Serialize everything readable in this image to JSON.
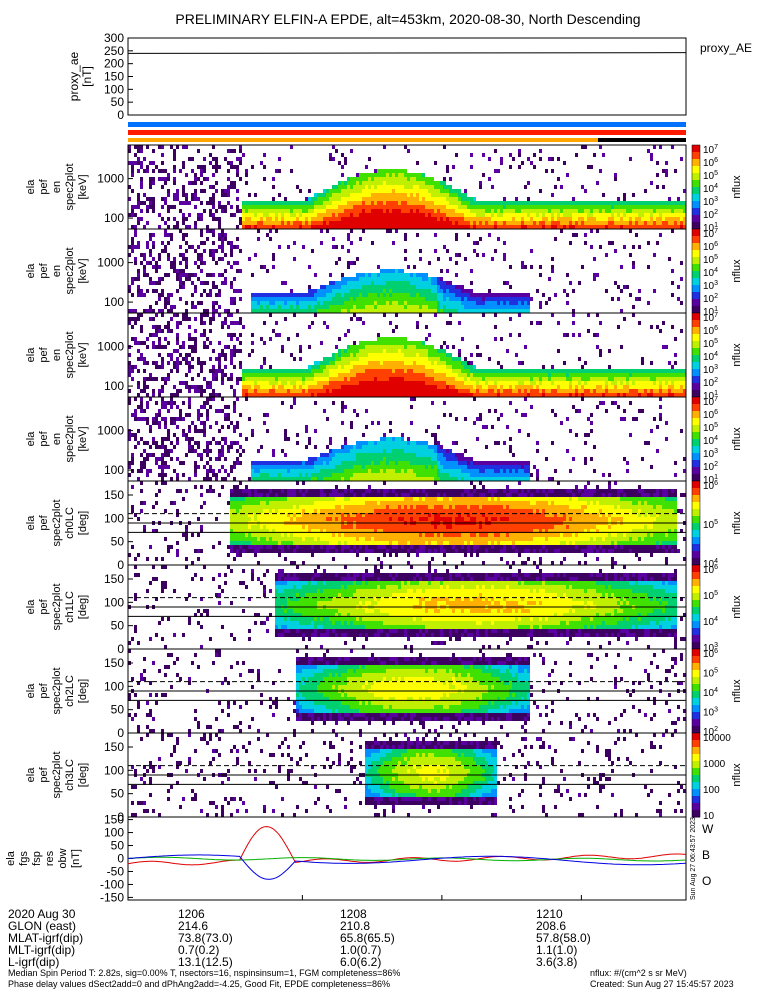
{
  "title": "PRELIMINARY ELFIN-A EPDE, alt=453km, 2020-08-30, North Descending",
  "side_label": "Sun Aug 27 06:43:57 2023",
  "colors": {
    "red_bar": "#ff1a00",
    "blue_bar": "#0070ff",
    "orange_bar": "#ffa500",
    "black_bar": "#000000"
  },
  "chart_data": [
    {
      "type": "line",
      "id": "proxy_ae",
      "ylabel": "proxy_ae\n[nT]",
      "series_label": "proxy_AE",
      "ylim": [
        0,
        300
      ],
      "yticks": [
        "300",
        "250",
        "200",
        "150",
        "100",
        "50",
        "0"
      ],
      "x": [
        1203.5,
        1211.5
      ],
      "values": [
        240,
        243
      ]
    },
    {
      "type": "heatmap",
      "id": "spec-0",
      "ylabel": "ela\npef\nen\nspec2plot\n[keV]",
      "yticks": [
        "1000",
        "100"
      ],
      "cbar_ticks": [
        "10^7",
        "10^6",
        "10^5",
        "10^4",
        "10^3",
        "10^2",
        "10^1"
      ],
      "cbar_label": "nflux",
      "log_y": true
    },
    {
      "type": "heatmap",
      "id": "spec-1",
      "ylabel": "ela\npef\nen\nspec2plot\n[keV]",
      "yticks": [
        "1000",
        "100"
      ],
      "cbar_ticks": [
        "10^7",
        "10^6",
        "10^5",
        "10^4",
        "10^3",
        "10^2",
        "10^1"
      ],
      "cbar_label": "nflux",
      "log_y": true
    },
    {
      "type": "heatmap",
      "id": "spec-2",
      "ylabel": "ela\npef\nen\nspec2plot\n[keV]",
      "yticks": [
        "1000",
        "100"
      ],
      "cbar_ticks": [
        "10^7",
        "10^6",
        "10^5",
        "10^4",
        "10^3",
        "10^2",
        "10^1"
      ],
      "cbar_label": "nflux",
      "log_y": true
    },
    {
      "type": "heatmap",
      "id": "spec-3",
      "ylabel": "ela\npef\nen\nspec2plot\n[keV]",
      "yticks": [
        "1000",
        "100"
      ],
      "cbar_ticks": [
        "10^7",
        "10^6",
        "10^5",
        "10^4",
        "10^3",
        "10^2",
        "10^1"
      ],
      "cbar_label": "nflux",
      "log_y": true
    },
    {
      "type": "heatmap",
      "id": "pa-0",
      "ylabel": "ela\npef\nspec2plot\nch0LC\n[deg]",
      "yticks": [
        "150",
        "100",
        "50",
        "0"
      ],
      "cbar_ticks": [
        "10^6",
        "10^5",
        "10^4"
      ],
      "cbar_label": "nflux"
    },
    {
      "type": "heatmap",
      "id": "pa-1",
      "ylabel": "ela\npef\nspec2plot\nch1LC\n[deg]",
      "yticks": [
        "150",
        "100",
        "50",
        "0"
      ],
      "cbar_ticks": [
        "10^6",
        "10^5",
        "10^4",
        "10^3"
      ],
      "cbar_label": "nflux"
    },
    {
      "type": "heatmap",
      "id": "pa-2",
      "ylabel": "ela\npef\nspec2plot\nch2LC\n[deg]",
      "yticks": [
        "150",
        "100",
        "50",
        "0"
      ],
      "cbar_ticks": [
        "10^6",
        "10^5",
        "10^4",
        "10^3",
        "10^2"
      ],
      "cbar_label": "nflux"
    },
    {
      "type": "heatmap",
      "id": "pa-3",
      "ylabel": "ela\npef\nspec2plot\nch3LC\n[deg]",
      "yticks": [
        "150",
        "100",
        "50",
        "0"
      ],
      "cbar_ticks": [
        "10000",
        "1000",
        "100",
        "10"
      ],
      "cbar_label": "nflux"
    },
    {
      "type": "line",
      "id": "fgm",
      "ylabel": "ela\nfgs\nfsp\nres\nobw\n[nT]",
      "yticks": [
        "150",
        "100",
        "50",
        "0",
        "-50",
        "-100",
        "-150"
      ],
      "ylim": [
        -160,
        160
      ],
      "legend": [
        "W",
        "B",
        "O"
      ],
      "series_colors": [
        "#e00000",
        "#00b000",
        "#0000e0"
      ]
    }
  ],
  "footer": {
    "rows": [
      [
        "2020 Aug 30",
        "1206",
        "1208",
        "1210"
      ],
      [
        "GLON (east)",
        "214.6",
        "210.8",
        "208.6"
      ],
      [
        "MLAT-igrf(dip)",
        "73.8(73.0)",
        "65.8(65.5)",
        "57.8(58.0)"
      ],
      [
        "MLT-igrf(dip)",
        "0.7(0.2)",
        "1.0(0.7)",
        "1.1(1.0)"
      ],
      [
        "L-igrf(dip)",
        "13.1(12.5)",
        "6.0(6.2)",
        "3.6(3.8)"
      ]
    ],
    "note_line1": "Median Spin Period T: 2.82s, sig=0.00% T, nsectors=16, nspinsinsum=1, FGM completeness=86%",
    "note_line2": "Phase delay values dSect2add=0 and dPhAng2add=-4.25, Good Fit, EPDE completeness=86%",
    "units": "nflux: #/(cm^2 s sr MeV)",
    "created": "Created: Sun Aug 27 15:45:57 2023"
  }
}
